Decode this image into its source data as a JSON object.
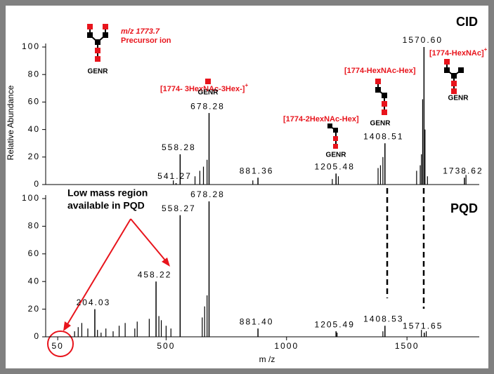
{
  "chart_data": [
    {
      "type": "stem",
      "label": "CID",
      "ylabel": "Relative Abundance",
      "xlim": [
        0,
        1800
      ],
      "ylim": [
        0,
        100
      ],
      "yticks": [
        0,
        20,
        40,
        60,
        80,
        100
      ],
      "color": "#000000",
      "labeled_peaks": {
        "x": [
          541.27,
          558.28,
          678.28,
          881.36,
          1205.48,
          1408.51,
          1570.6,
          1738.62
        ],
        "x_labels": [
          "541.27",
          "558.28",
          "678.28",
          "881.36",
          "1205.48",
          "1408.51",
          "1570.60",
          "1738.62"
        ],
        "values": [
          1,
          22,
          52,
          5,
          8,
          30,
          100,
          5
        ]
      },
      "peaks": {
        "x": [
          530,
          620,
          640,
          655,
          670,
          860,
          1190,
          1215,
          1380,
          1390,
          1400,
          1540,
          1555,
          1560,
          1565,
          1575,
          1585,
          1745
        ],
        "values": [
          3,
          6,
          10,
          13,
          18,
          3,
          4,
          6,
          12,
          14,
          20,
          10,
          14,
          22,
          62,
          40,
          6,
          7
        ]
      }
    },
    {
      "type": "stem",
      "label": "PQD",
      "xlabel": "m /z",
      "xlim": [
        0,
        1800
      ],
      "ylim": [
        0,
        100
      ],
      "yticks": [
        0,
        20,
        40,
        60,
        80,
        100
      ],
      "xticks": [
        50,
        500,
        1000,
        1500
      ],
      "color": "#000000",
      "labeled_peaks": {
        "x": [
          204.03,
          458.22,
          558.27,
          678.28,
          881.4,
          1205.49,
          1408.53,
          1571.65
        ],
        "x_labels": [
          "204.03",
          "458.22",
          "558.27",
          "678.28",
          "881.40",
          "1205.49",
          "1408.53",
          "1571.65"
        ],
        "values": [
          20,
          40,
          88,
          98,
          6,
          4,
          8,
          3
        ]
      },
      "peaks": {
        "x": [
          120,
          135,
          150,
          175,
          215,
          230,
          250,
          280,
          305,
          330,
          370,
          380,
          430,
          470,
          480,
          500,
          520,
          650,
          660,
          670,
          1210,
          1400,
          1560,
          1580
        ],
        "values": [
          4,
          7,
          10,
          6,
          5,
          3,
          6,
          4,
          8,
          10,
          6,
          11,
          13,
          15,
          12,
          8,
          6,
          14,
          22,
          30,
          3,
          4,
          5,
          4
        ]
      }
    }
  ],
  "annotations": {
    "precursor_mz": "m/z 1773.7",
    "precursor": "Precursor ion",
    "glycan_label": "GENR",
    "frag1": "[1774- 3HexNAc-3Hex-]",
    "frag2": "[1774-2HexNAc-Hex]",
    "frag3": "[1774-HexNAc-Hex]",
    "frag4": "[1774-HexNAc]",
    "charge": "+",
    "note_line1": "Low mass region",
    "note_line2": "available in PQD"
  }
}
